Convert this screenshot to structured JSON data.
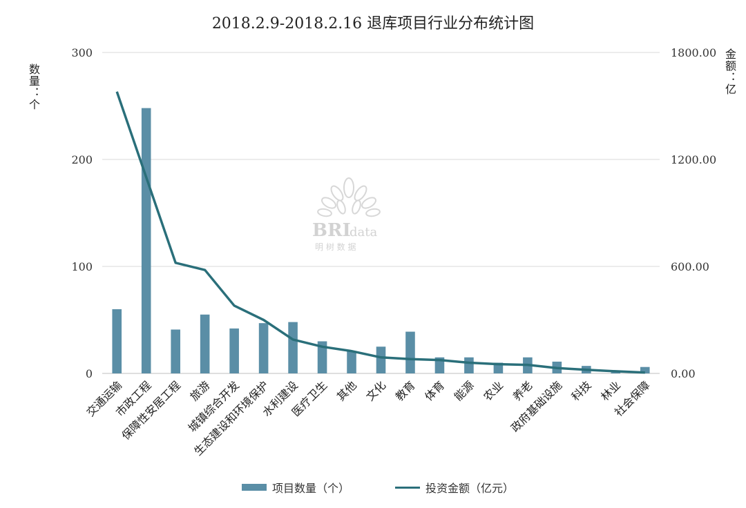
{
  "chart_data": {
    "type": "bar",
    "title": "2018.2.9-2018.2.16 退库项目行业分布统计图",
    "ylabel_left": "数量：个",
    "ylabel_right": "金额：亿",
    "categories": [
      "交通运输",
      "市政工程",
      "保障性安居工程",
      "旅游",
      "城镇综合开发",
      "生态建设和环境保护",
      "水利建设",
      "医疗卫生",
      "其他",
      "文化",
      "教育",
      "体育",
      "能源",
      "农业",
      "养老",
      "政府基础设施",
      "科技",
      "林业",
      "社会保障"
    ],
    "ylim_left": [
      0,
      300
    ],
    "ylim_right": [
      0,
      1800
    ],
    "yticks_left": [
      "0",
      "100",
      "200",
      "300"
    ],
    "yticks_right": [
      "0.00",
      "600.00",
      "1200.00",
      "1800.00"
    ],
    "grid": true,
    "legend_position": "bottom",
    "series": [
      {
        "name": "项目数量（个）",
        "kind": "bar",
        "axis": "left",
        "color": "#5a8ea6",
        "values": [
          60,
          248,
          41,
          55,
          42,
          47,
          48,
          30,
          21,
          25,
          39,
          15,
          15,
          10,
          15,
          11,
          7,
          1,
          6
        ]
      },
      {
        "name": "投资金额（亿元）",
        "kind": "line",
        "axis": "right",
        "color": "#2a6f7a",
        "values": [
          1580,
          1100,
          620,
          580,
          380,
          300,
          190,
          150,
          125,
          90,
          80,
          75,
          60,
          52,
          48,
          30,
          20,
          12,
          5
        ]
      }
    ]
  },
  "watermark": {
    "brand": "BRI",
    "suffix": "data",
    "subtitle": "明 树 数 据"
  }
}
